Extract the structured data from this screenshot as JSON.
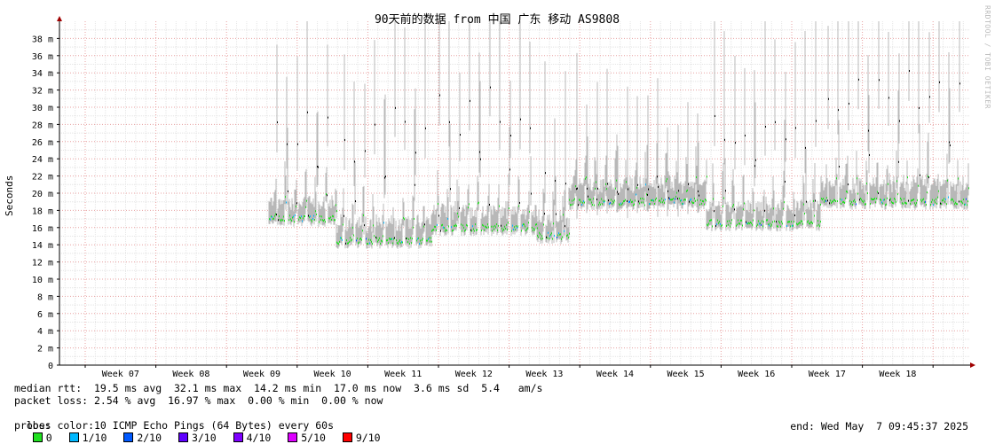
{
  "chart_data": {
    "type": "line",
    "title": "90天前的数据 from 中国 广东 移动 AS9808",
    "ylabel": "Seconds",
    "ylim": [
      0,
      40
    ],
    "y_ticks": [
      "0",
      "2 m",
      "4 m",
      "6 m",
      "8 m",
      "10 m",
      "12 m",
      "14 m",
      "16 m",
      "18 m",
      "20 m",
      "22 m",
      "24 m",
      "26 m",
      "28 m",
      "30 m",
      "32 m",
      "34 m",
      "36 m",
      "38 m"
    ],
    "x_ticks": [
      "Week 07",
      "Week 08",
      "Week 09",
      "Week 10",
      "Week 11",
      "Week 12",
      "Week 13",
      "Week 14",
      "Week 15",
      "Week 16",
      "Week 17",
      "Week 18"
    ],
    "grid": true,
    "segments": [
      {
        "start": 2.6,
        "end": 3.55,
        "base": 17,
        "peak": 30
      },
      {
        "start": 3.55,
        "end": 4.9,
        "base": 14.5,
        "peak": 30
      },
      {
        "start": 4.9,
        "end": 6.4,
        "base": 16,
        "peak": 32
      },
      {
        "start": 6.4,
        "end": 6.85,
        "base": 15,
        "peak": 24
      },
      {
        "start": 6.85,
        "end": 8.8,
        "base": 19,
        "peak": 21
      },
      {
        "start": 8.8,
        "end": 10.4,
        "base": 16.5,
        "peak": 30
      },
      {
        "start": 10.4,
        "end": 12.5,
        "base": 19,
        "peak": 33
      }
    ]
  },
  "stats": {
    "rtt_line": "median rtt:  19.5 ms avg  32.1 ms max  14.2 ms min  17.0 ms now  3.6 ms sd  5.4   am/s",
    "loss_line": "packet loss: 2.54 % avg  16.97 % max  0.00 % min  0.00 % now",
    "loss_color_label": "loss color:",
    "loss_colors": [
      {
        "label": "0",
        "color": "#20e020"
      },
      {
        "label": "1/10",
        "color": "#00b8ff"
      },
      {
        "label": "2/10",
        "color": "#0059ff"
      },
      {
        "label": "3/10",
        "color": "#5e00ff"
      },
      {
        "label": "4/10",
        "color": "#7e00ff"
      },
      {
        "label": "5/10",
        "color": "#dd00ff"
      },
      {
        "label": "9/10",
        "color": "#ff0000"
      }
    ],
    "probe_line": "probe:       10 ICMP Echo Pings (64 Bytes) every 60s",
    "end_line": "end: Wed May  7 09:45:37 2025"
  },
  "vendor_text": "RRDTOOL / TOBI OETIKER"
}
